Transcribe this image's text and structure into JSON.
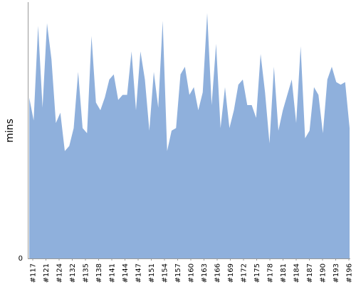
{
  "chart_data": {
    "type": "area",
    "ylabel": "mins",
    "xlabel": "",
    "title": "",
    "ylim": [
      0,
      100
    ],
    "y_tick_labels": [
      "0"
    ],
    "x_tick_labels": [
      "#117",
      "#121",
      "#124",
      "#132",
      "#135",
      "#138",
      "#141",
      "#144",
      "#147",
      "#151",
      "#154",
      "#157",
      "#160",
      "#163",
      "#166",
      "#169",
      "#172",
      "#175",
      "#178",
      "#181",
      "#184",
      "#187",
      "#190",
      "#193",
      "#196"
    ],
    "grid": false,
    "fill_color": "#8fb0dc",
    "axis_color": "#999999",
    "values": [
      63,
      54,
      91,
      59,
      92,
      78,
      53,
      57,
      42,
      44,
      51,
      73,
      51,
      49,
      87,
      61,
      58,
      63,
      70,
      72,
      62,
      64,
      64,
      81,
      58,
      81,
      70,
      50,
      73,
      59,
      93,
      42,
      50,
      51,
      72,
      75,
      64,
      67,
      58,
      65,
      96,
      60,
      84,
      51,
      67,
      51,
      58,
      68,
      70,
      60,
      60,
      55,
      80,
      65,
      45,
      75,
      50,
      58,
      64,
      70,
      53,
      83,
      47,
      50,
      67,
      64,
      49,
      70,
      75,
      69,
      68,
      69,
      51
    ]
  }
}
